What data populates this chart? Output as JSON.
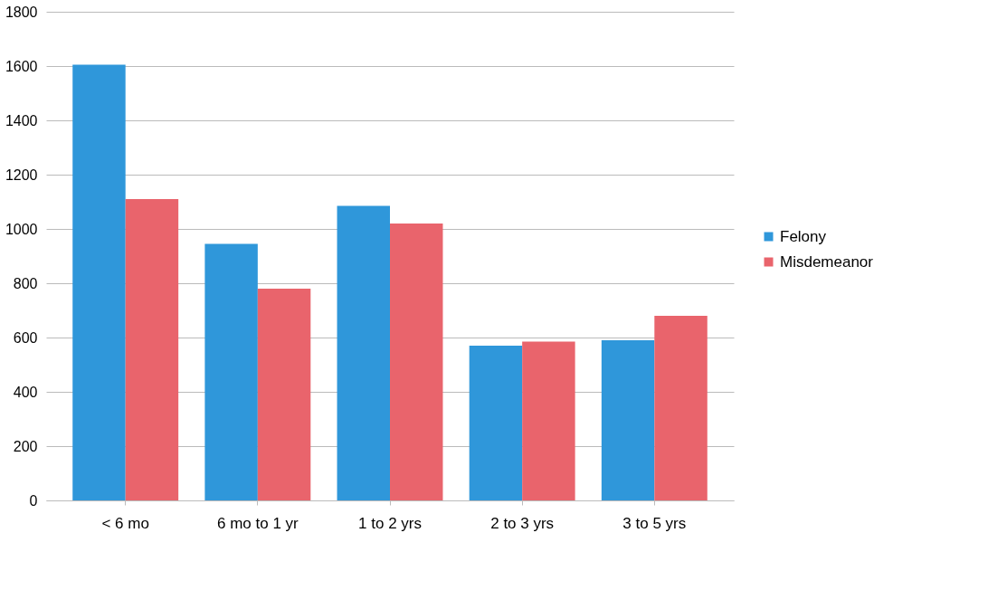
{
  "chart_data": {
    "type": "bar",
    "categories": [
      "< 6 mo",
      "6 mo to 1 yr",
      "1 to 2 yrs",
      "2 to 3 yrs",
      "3 to 5 yrs"
    ],
    "series": [
      {
        "name": "Felony",
        "color": "#2f97da",
        "values": [
          1605,
          945,
          1085,
          570,
          590
        ]
      },
      {
        "name": "Misdemeanor",
        "color": "#e9646c",
        "values": [
          1110,
          780,
          1020,
          585,
          680
        ]
      }
    ],
    "ylim": [
      0,
      1800
    ],
    "yticks": [
      0,
      200,
      400,
      600,
      800,
      1000,
      1200,
      1400,
      1600,
      1800
    ],
    "grid": "y",
    "legend": "right"
  }
}
